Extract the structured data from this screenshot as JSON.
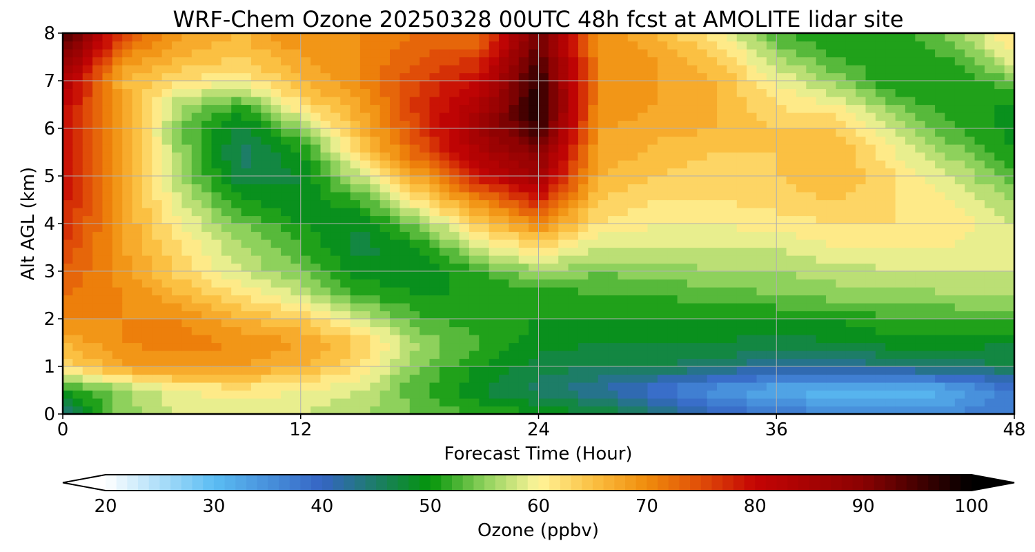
{
  "chart_data": {
    "type": "heatmap",
    "title": "WRF-Chem Ozone  20250328 00UTC 48h fcst at AMOLITE lidar site",
    "xlabel": "Forecast Time (Hour)",
    "ylabel": "Alt AGL (km)",
    "xlim": [
      0,
      48
    ],
    "ylim": [
      0,
      8
    ],
    "x_ticks": [
      0,
      12,
      24,
      36,
      48
    ],
    "y_ticks": [
      0,
      1,
      2,
      3,
      4,
      5,
      6,
      7,
      8
    ],
    "grid": true,
    "x": [
      0,
      3,
      6,
      9,
      12,
      15,
      18,
      21,
      24,
      27,
      30,
      33,
      36,
      39,
      42,
      45,
      48
    ],
    "y": [
      0,
      0.5,
      1,
      1.5,
      2,
      2.5,
      3,
      3.5,
      4,
      4.5,
      5,
      5.5,
      6,
      6.5,
      7,
      7.5,
      8
    ],
    "z": [
      [
        44,
        55,
        58,
        58,
        58,
        56,
        54,
        52,
        50,
        48,
        44,
        40,
        38,
        36,
        36,
        36,
        38
      ],
      [
        50,
        55,
        60,
        61,
        60,
        58,
        52,
        48,
        45,
        42,
        38,
        34,
        32,
        30,
        30,
        32,
        38
      ],
      [
        62,
        68,
        69,
        68,
        66,
        62,
        54,
        50,
        47,
        46,
        46,
        45,
        42,
        42,
        44,
        45,
        46
      ],
      [
        66,
        70,
        71,
        70,
        68,
        64,
        56,
        52,
        49,
        48,
        48,
        48,
        47,
        48,
        49,
        49,
        48
      ],
      [
        70,
        70,
        70,
        66,
        64,
        58,
        52,
        51,
        50,
        50,
        50,
        50,
        50,
        50,
        52,
        52,
        52
      ],
      [
        72,
        70,
        66,
        62,
        58,
        52,
        50,
        50,
        50,
        52,
        52,
        53,
        54,
        55,
        55,
        56,
        56
      ],
      [
        74,
        69,
        63,
        58,
        54,
        49,
        48,
        52,
        56,
        54,
        55,
        56,
        56,
        57,
        58,
        58,
        58
      ],
      [
        76,
        68,
        62,
        56,
        52,
        47,
        50,
        58,
        62,
        58,
        58,
        58,
        58,
        60,
        60,
        60,
        58
      ],
      [
        78,
        68,
        60,
        54,
        50,
        48,
        55,
        64,
        70,
        62,
        60,
        60,
        61,
        62,
        62,
        61,
        58
      ],
      [
        79,
        68,
        58,
        50,
        48,
        52,
        62,
        70,
        78,
        64,
        62,
        62,
        63,
        64,
        62,
        60,
        56
      ],
      [
        80,
        68,
        56,
        46,
        48,
        58,
        68,
        80,
        86,
        66,
        64,
        63,
        64,
        66,
        62,
        58,
        52
      ],
      [
        80,
        68,
        55,
        45,
        50,
        63,
        74,
        84,
        90,
        68,
        65,
        64,
        64,
        66,
        60,
        55,
        50
      ],
      [
        80,
        68,
        54,
        47,
        55,
        66,
        76,
        86,
        96,
        68,
        67,
        66,
        64,
        64,
        57,
        52,
        49
      ],
      [
        81,
        68,
        56,
        52,
        62,
        68,
        77,
        84,
        98,
        70,
        68,
        66,
        62,
        60,
        54,
        50,
        50
      ],
      [
        84,
        66,
        62,
        60,
        66,
        70,
        76,
        80,
        97,
        70,
        68,
        66,
        60,
        55,
        50,
        50,
        54
      ],
      [
        90,
        70,
        66,
        64,
        68,
        70,
        74,
        76,
        94,
        70,
        68,
        64,
        56,
        52,
        50,
        52,
        60
      ],
      [
        96,
        76,
        68,
        66,
        70,
        70,
        72,
        72,
        92,
        70,
        66,
        60,
        52,
        50,
        50,
        56,
        62
      ]
    ],
    "colorbar": {
      "label": "Ozone  (ppbv)",
      "min": 20,
      "max": 100,
      "ticks": [
        20,
        30,
        40,
        50,
        60,
        70,
        80,
        90,
        100
      ],
      "extend": "both",
      "position": "bottom",
      "colors": [
        {
          "v": 20,
          "c": "#ffffff"
        },
        {
          "v": 30,
          "c": "#5bbdf3"
        },
        {
          "v": 40,
          "c": "#3565c4"
        },
        {
          "v": 50,
          "c": "#04950a"
        },
        {
          "v": 55,
          "c": "#8ed15c"
        },
        {
          "v": 60,
          "c": "#fff59a"
        },
        {
          "v": 65,
          "c": "#fbc042"
        },
        {
          "v": 70,
          "c": "#f08c0c"
        },
        {
          "v": 75,
          "c": "#e04d08"
        },
        {
          "v": 80,
          "c": "#c40404"
        },
        {
          "v": 90,
          "c": "#8a0202"
        },
        {
          "v": 100,
          "c": "#000000"
        }
      ]
    }
  }
}
